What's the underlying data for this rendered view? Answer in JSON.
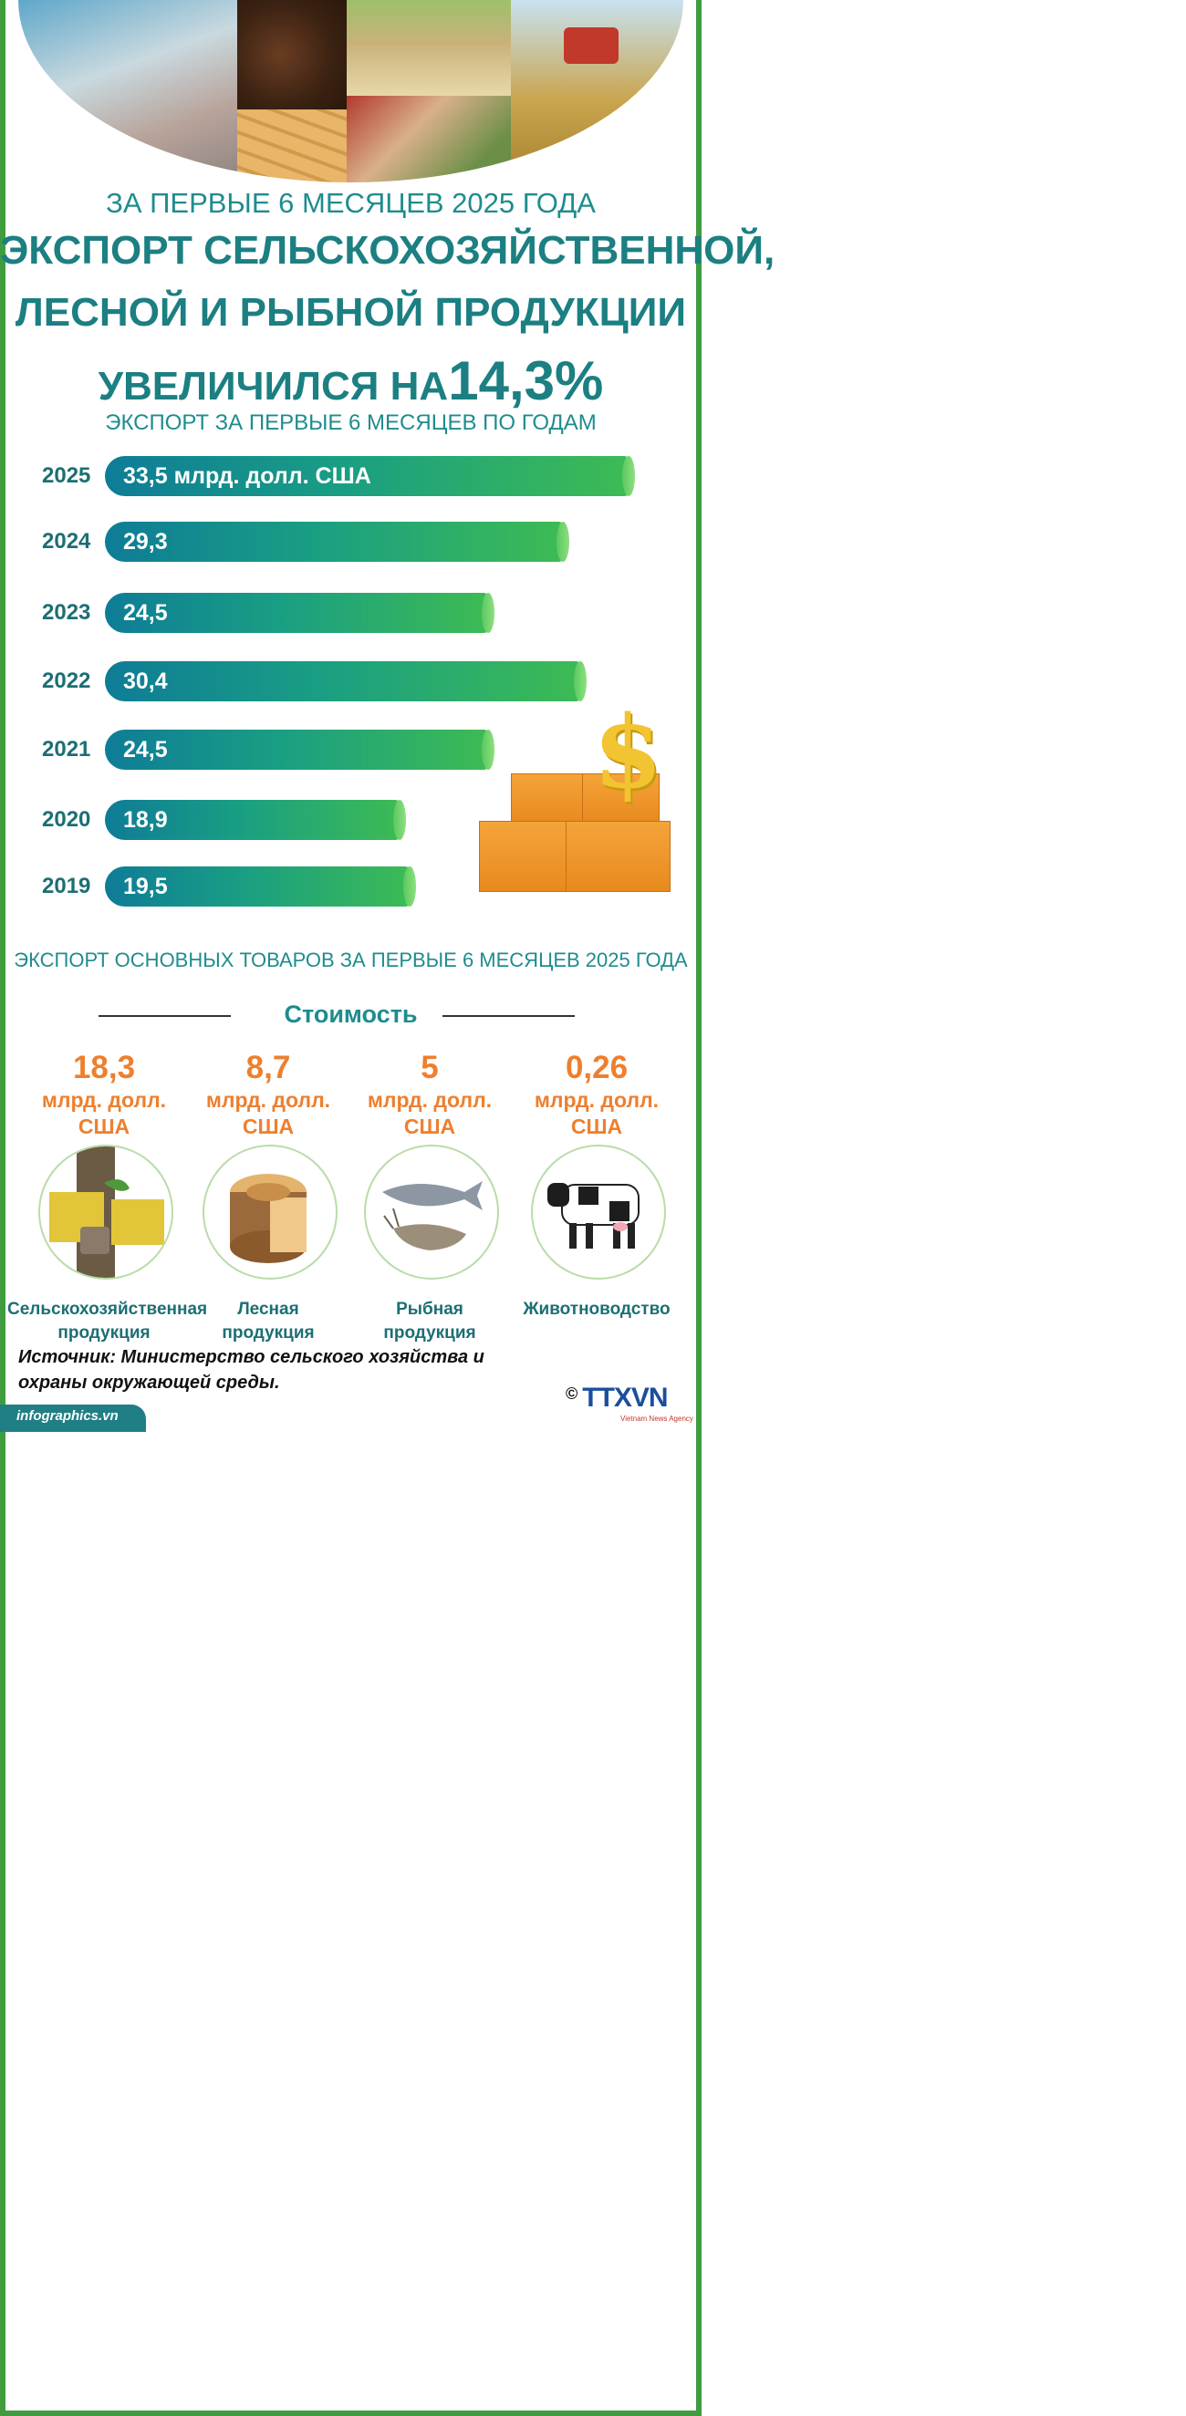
{
  "header": {
    "subtitle": "ЗА ПЕРВЫЕ 6 МЕСЯЦЕВ 2025 ГОДА",
    "title_line1": "ЭКСПОРТ СЕЛЬСКОХОЗЯЙСТВЕННОЙ,",
    "title_line2": "ЛЕСНОЙ И РЫБНОЙ ПРОДУКЦИИ",
    "title_line3_prefix": "УВЕЛИЧИЛСЯ НА",
    "title_line3_value": "14,3%"
  },
  "chart_data": {
    "type": "bar",
    "title": "ЭКСПОРТ ЗА ПЕРВЫЕ 6 МЕСЯЦЕВ ПО ГОДАМ",
    "categories": [
      "2025",
      "2024",
      "2023",
      "2022",
      "2021",
      "2020",
      "2019"
    ],
    "values": [
      33.5,
      29.3,
      24.5,
      30.4,
      24.5,
      18.9,
      19.5
    ],
    "value_labels": [
      "33,5 млрд. долл. США",
      "29,3",
      "24,5",
      "30,4",
      "24,5",
      "18,9",
      "19,5"
    ],
    "orientation": "horizontal",
    "colors": {
      "start": "#0e7c97",
      "end": "#3dbb54"
    }
  },
  "section2": {
    "heading": "ЭКСПОРТ ОСНОВНЫХ ТОВАРОВ ЗА ПЕРВЫЕ 6 МЕСЯЦЕВ 2025 ГОДА",
    "value_title": "Стоимость",
    "products": [
      {
        "value": "18,3",
        "unit_line1": "млрд. долл.",
        "unit_line2": "США",
        "name_line1": "Сельскохозяйственная",
        "name_line2": "продукция",
        "icon": "rubber-tree-icon"
      },
      {
        "value": "8,7",
        "unit_line1": "млрд. долл.",
        "unit_line2": "США",
        "name_line1": "Лесная",
        "name_line2": "продукция",
        "icon": "wood-log-icon"
      },
      {
        "value": "5",
        "unit_line1": "млрд. долл.",
        "unit_line2": "США",
        "name_line1": "Рыбная",
        "name_line2": "продукция",
        "icon": "fish-shrimp-icon"
      },
      {
        "value": "0,26",
        "unit_line1": "млрд. долл.",
        "unit_line2": "США",
        "name_line1": "Животноводство",
        "name_line2": "",
        "icon": "cow-icon"
      }
    ]
  },
  "source": {
    "line1": "Источник: Министерство сельского хозяйства и",
    "line2": "охраны окружающей среды."
  },
  "footer": {
    "site": "infographics.vn",
    "copyright": "©",
    "logo": "TTXVN",
    "logo_sub": "Vietnam News Agency"
  },
  "colors": {
    "teal": "#1c7f82",
    "orange": "#ee7f2d",
    "border_green": "#3f9c3f"
  }
}
